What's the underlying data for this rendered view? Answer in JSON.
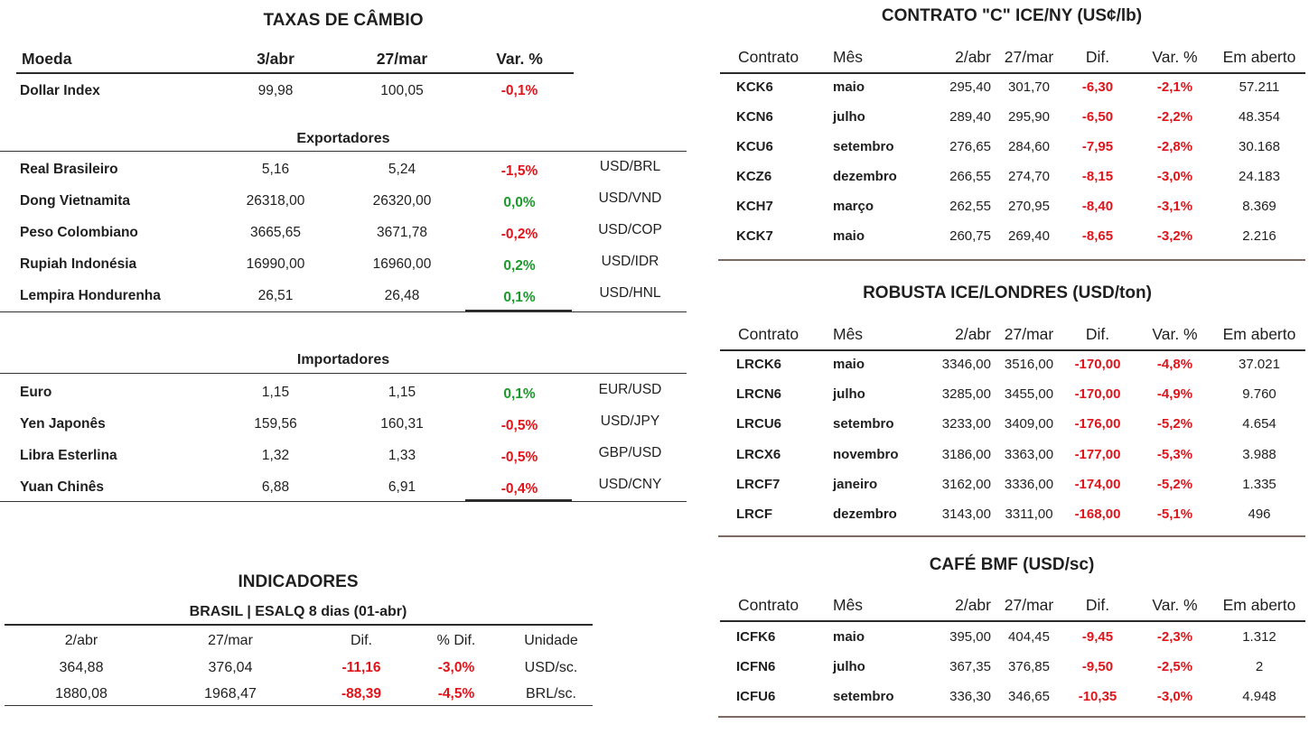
{
  "taxas": {
    "title": "TAXAS DE CÂMBIO",
    "headers": [
      "Moeda",
      "3/abr",
      "27/mar",
      "Var. %"
    ],
    "dollar_index": {
      "name": "Dollar Index",
      "v1": "99,98",
      "v2": "100,05",
      "var": "-0,1%"
    },
    "exportadores_label": "Exportadores",
    "exportadores": [
      {
        "name": "Real Brasileiro",
        "v1": "5,16",
        "v2": "5,24",
        "var": "-1,5%",
        "pair": "USD/BRL"
      },
      {
        "name": "Dong Vietnamita",
        "v1": "26318,00",
        "v2": "26320,00",
        "var": "0,0%",
        "pair": "USD/VND"
      },
      {
        "name": "Peso Colombiano",
        "v1": "3665,65",
        "v2": "3671,78",
        "var": "-0,2%",
        "pair": "USD/COP"
      },
      {
        "name": "Rupiah Indonésia",
        "v1": "16990,00",
        "v2": "16960,00",
        "var": "0,2%",
        "pair": "USD/IDR"
      },
      {
        "name": "Lempira Hondurenha",
        "v1": "26,51",
        "v2": "26,48",
        "var": "0,1%",
        "pair": "USD/HNL"
      }
    ],
    "importadores_label": "Importadores",
    "importadores": [
      {
        "name": "Euro",
        "v1": "1,15",
        "v2": "1,15",
        "var": "0,1%",
        "pair": "EUR/USD"
      },
      {
        "name": "Yen Japonês",
        "v1": "159,56",
        "v2": "160,31",
        "var": "-0,5%",
        "pair": "USD/JPY"
      },
      {
        "name": "Libra Esterlina",
        "v1": "1,32",
        "v2": "1,33",
        "var": "-0,5%",
        "pair": "GBP/USD"
      },
      {
        "name": "Yuan Chinês",
        "v1": "6,88",
        "v2": "6,91",
        "var": "-0,4%",
        "pair": "USD/CNY"
      }
    ]
  },
  "indicadores": {
    "title": "INDICADORES",
    "subtitle": "BRASIL | ESALQ 8 dias (01-abr)",
    "headers": [
      "2/abr",
      "27/mar",
      "Dif.",
      "% Dif.",
      "Unidade"
    ],
    "rows": [
      [
        "364,88",
        "376,04",
        "-11,16",
        "-3,0%",
        "USD/sc."
      ],
      [
        "1880,08",
        "1968,47",
        "-88,39",
        "-4,5%",
        "BRL/sc."
      ]
    ]
  },
  "contrato_c": {
    "title": "CONTRATO \"C\" ICE/NY (US¢/lb)",
    "headers": [
      "Contrato",
      "Mês",
      "2/abr",
      "27/mar",
      "Dif.",
      "Var. %",
      "Em aberto"
    ],
    "rows": [
      [
        "KCK6",
        "maio",
        "295,40",
        "301,70",
        "-6,30",
        "-2,1%",
        "57.211"
      ],
      [
        "KCN6",
        "julho",
        "289,40",
        "295,90",
        "-6,50",
        "-2,2%",
        "48.354"
      ],
      [
        "KCU6",
        "setembro",
        "276,65",
        "284,60",
        "-7,95",
        "-2,8%",
        "30.168"
      ],
      [
        "KCZ6",
        "dezembro",
        "266,55",
        "274,70",
        "-8,15",
        "-3,0%",
        "24.183"
      ],
      [
        "KCH7",
        "março",
        "262,55",
        "270,95",
        "-8,40",
        "-3,1%",
        "8.369"
      ],
      [
        "KCK7",
        "maio",
        "260,75",
        "269,40",
        "-8,65",
        "-3,2%",
        "2.216"
      ]
    ]
  },
  "robusta": {
    "title": "ROBUSTA ICE/LONDRES (USD/ton)",
    "headers": [
      "Contrato",
      "Mês",
      "2/abr",
      "27/mar",
      "Dif.",
      "Var. %",
      "Em aberto"
    ],
    "rows": [
      [
        "LRCK6",
        "maio",
        "3346,00",
        "3516,00",
        "-170,00",
        "-4,8%",
        "37.021"
      ],
      [
        "LRCN6",
        "julho",
        "3285,00",
        "3455,00",
        "-170,00",
        "-4,9%",
        "9.760"
      ],
      [
        "LRCU6",
        "setembro",
        "3233,00",
        "3409,00",
        "-176,00",
        "-5,2%",
        "4.654"
      ],
      [
        "LRCX6",
        "novembro",
        "3186,00",
        "3363,00",
        "-177,00",
        "-5,3%",
        "3.988"
      ],
      [
        "LRCF7",
        "janeiro",
        "3162,00",
        "3336,00",
        "-174,00",
        "-5,2%",
        "1.335"
      ],
      [
        "LRCF",
        "dezembro",
        "3143,00",
        "3311,00",
        "-168,00",
        "-5,1%",
        "496"
      ]
    ]
  },
  "bmf": {
    "title": "CAFÉ BMF (USD/sc)",
    "headers": [
      "Contrato",
      "Mês",
      "2/abr",
      "27/mar",
      "Dif.",
      "Var. %",
      "Em aberto"
    ],
    "rows": [
      [
        "ICFK6",
        "maio",
        "395,00",
        "404,45",
        "-9,45",
        "-2,3%",
        "1.312"
      ],
      [
        "ICFN6",
        "julho",
        "367,35",
        "376,85",
        "-9,50",
        "-2,5%",
        "2"
      ],
      [
        "ICFU6",
        "setembro",
        "336,30",
        "346,65",
        "-10,35",
        "-3,0%",
        "4.948"
      ]
    ]
  },
  "colors": {
    "negative": "#e0141b",
    "positive": "#1a9a2a"
  }
}
